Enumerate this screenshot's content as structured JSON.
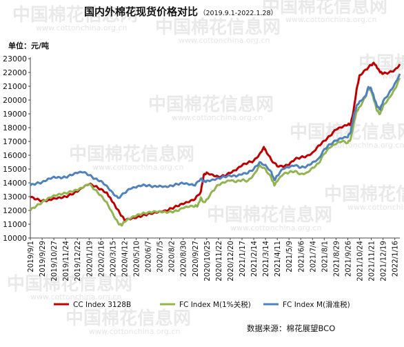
{
  "watermark": {
    "brand": "中国棉花信息网",
    "url": "www.cottonchina.org.cn"
  },
  "chart_data": {
    "type": "line",
    "title": "国内外棉花现货价格对比",
    "subtitle": "（2019.9.1-2022.1.28）",
    "unit_label": "单位：元/吨",
    "source": "数据来源：棉花展望BCO",
    "ylim": [
      10000,
      23000
    ],
    "yticks": [
      10000,
      11000,
      12000,
      13000,
      14000,
      15000,
      16000,
      17000,
      18000,
      19000,
      20000,
      21000,
      22000,
      23000
    ],
    "x_start": "2019/9/1",
    "x_end": "2022/1/28",
    "x_ticks": [
      "2019/9/1",
      "2019/9/29",
      "2019/10/27",
      "2019/11/24",
      "2019/12/22",
      "2020/1/19",
      "2020/2/16",
      "2020/3/15",
      "2020/4/12",
      "2020/5/10",
      "2020/6/7",
      "2020/7/5",
      "2020/8/2",
      "2020/8/30",
      "2020/9/27",
      "2020/10/25",
      "2020/11/22",
      "2020/12/20",
      "2021/1/17",
      "2021/2/14",
      "2021/3/14",
      "2021/4/11",
      "2021/5/9",
      "2021/6/6",
      "2021/7/4",
      "2021/8/1",
      "2021/8/29",
      "2021/9/26",
      "2021/10/24",
      "2021/11/21",
      "2021/12/19",
      "2022/1/16"
    ],
    "grid": false,
    "legend_position": "bottom",
    "series": [
      {
        "name": "CC Index 3128B",
        "color": "#c00000",
        "points": [
          [
            "2019/9/1",
            12950
          ],
          [
            "2019/9/15",
            12800
          ],
          [
            "2019/9/29",
            12700
          ],
          [
            "2019/10/13",
            12750
          ],
          [
            "2019/10/27",
            12900
          ],
          [
            "2019/11/10",
            12950
          ],
          [
            "2019/11/24",
            13000
          ],
          [
            "2019/12/8",
            13150
          ],
          [
            "2019/12/22",
            13350
          ],
          [
            "2020/1/5",
            13650
          ],
          [
            "2020/1/19",
            13900
          ],
          [
            "2020/2/2",
            13750
          ],
          [
            "2020/2/16",
            13550
          ],
          [
            "2020/3/1",
            13300
          ],
          [
            "2020/3/10",
            12900
          ],
          [
            "2020/3/20",
            12400
          ],
          [
            "2020/4/1",
            11800
          ],
          [
            "2020/4/12",
            11300
          ],
          [
            "2020/4/26",
            11350
          ],
          [
            "2020/5/10",
            11450
          ],
          [
            "2020/5/24",
            11600
          ],
          [
            "2020/6/7",
            11750
          ],
          [
            "2020/6/21",
            11850
          ],
          [
            "2020/7/5",
            11950
          ],
          [
            "2020/7/19",
            12000
          ],
          [
            "2020/8/2",
            12150
          ],
          [
            "2020/8/16",
            12300
          ],
          [
            "2020/8/30",
            12450
          ],
          [
            "2020/9/13",
            12600
          ],
          [
            "2020/9/27",
            12800
          ],
          [
            "2020/10/11",
            13350
          ],
          [
            "2020/10/18",
            14600
          ],
          [
            "2020/10/25",
            14750
          ],
          [
            "2020/11/8",
            14600
          ],
          [
            "2020/11/22",
            14450
          ],
          [
            "2020/12/6",
            14500
          ],
          [
            "2020/12/20",
            14700
          ],
          [
            "2021/1/3",
            14900
          ],
          [
            "2021/1/17",
            15250
          ],
          [
            "2021/1/31",
            15450
          ],
          [
            "2021/2/14",
            15600
          ],
          [
            "2021/2/28",
            16100
          ],
          [
            "2021/3/10",
            16600
          ],
          [
            "2021/3/14",
            16400
          ],
          [
            "2021/3/28",
            15650
          ],
          [
            "2021/4/11",
            15200
          ],
          [
            "2021/4/25",
            15150
          ],
          [
            "2021/5/9",
            15300
          ],
          [
            "2021/5/23",
            15700
          ],
          [
            "2021/6/6",
            15850
          ],
          [
            "2021/6/20",
            15950
          ],
          [
            "2021/7/4",
            16200
          ],
          [
            "2021/7/18",
            16700
          ],
          [
            "2021/8/1",
            17050
          ],
          [
            "2021/8/15",
            17400
          ],
          [
            "2021/8/29",
            17850
          ],
          [
            "2021/9/12",
            18000
          ],
          [
            "2021/9/26",
            18200
          ],
          [
            "2021/10/3",
            18250
          ],
          [
            "2021/10/10",
            19300
          ],
          [
            "2021/10/17",
            20800
          ],
          [
            "2021/10/24",
            21800
          ],
          [
            "2021/11/7",
            22200
          ],
          [
            "2021/11/21",
            22550
          ],
          [
            "2021/11/28",
            22650
          ],
          [
            "2021/12/5",
            22300
          ],
          [
            "2021/12/12",
            22000
          ],
          [
            "2021/12/19",
            21900
          ],
          [
            "2022/1/2",
            22000
          ],
          [
            "2022/1/16",
            22200
          ],
          [
            "2022/1/28",
            22600
          ]
        ]
      },
      {
        "name": "FC Index M(1%关税)",
        "color": "#92b44f",
        "points": [
          [
            "2019/9/1",
            12000
          ],
          [
            "2019/9/15",
            12300
          ],
          [
            "2019/9/29",
            12600
          ],
          [
            "2019/10/13",
            12900
          ],
          [
            "2019/10/27",
            13100
          ],
          [
            "2019/11/10",
            13200
          ],
          [
            "2019/11/24",
            13250
          ],
          [
            "2019/12/8",
            13350
          ],
          [
            "2019/12/22",
            13450
          ],
          [
            "2020/1/5",
            13650
          ],
          [
            "2020/1/19",
            13900
          ],
          [
            "2020/2/2",
            13500
          ],
          [
            "2020/2/16",
            13100
          ],
          [
            "2020/3/1",
            12600
          ],
          [
            "2020/3/15",
            11800
          ],
          [
            "2020/3/28",
            11100
          ],
          [
            "2020/4/5",
            10900
          ],
          [
            "2020/4/12",
            11150
          ],
          [
            "2020/4/26",
            11400
          ],
          [
            "2020/5/10",
            11600
          ],
          [
            "2020/5/24",
            11750
          ],
          [
            "2020/6/7",
            11850
          ],
          [
            "2020/6/21",
            11950
          ],
          [
            "2020/7/5",
            11950
          ],
          [
            "2020/7/19",
            11900
          ],
          [
            "2020/8/2",
            11900
          ],
          [
            "2020/8/16",
            11950
          ],
          [
            "2020/8/30",
            12150
          ],
          [
            "2020/9/13",
            12250
          ],
          [
            "2020/9/27",
            12300
          ],
          [
            "2020/10/4",
            12350
          ],
          [
            "2020/10/11",
            12950
          ],
          [
            "2020/10/18",
            12600
          ],
          [
            "2020/10/25",
            12800
          ],
          [
            "2020/11/8",
            13400
          ],
          [
            "2020/11/22",
            13850
          ],
          [
            "2020/12/6",
            14000
          ],
          [
            "2020/12/20",
            14150
          ],
          [
            "2021/1/3",
            14050
          ],
          [
            "2021/1/17",
            14200
          ],
          [
            "2021/1/31",
            14150
          ],
          [
            "2021/2/14",
            14600
          ],
          [
            "2021/2/28",
            15300
          ],
          [
            "2021/3/14",
            15000
          ],
          [
            "2021/3/28",
            14350
          ],
          [
            "2021/4/4",
            13800
          ],
          [
            "2021/4/11",
            14100
          ],
          [
            "2021/4/25",
            14600
          ],
          [
            "2021/5/9",
            14750
          ],
          [
            "2021/5/23",
            14850
          ],
          [
            "2021/6/6",
            14650
          ],
          [
            "2021/6/20",
            14750
          ],
          [
            "2021/7/4",
            15100
          ],
          [
            "2021/7/18",
            15400
          ],
          [
            "2021/8/1",
            16100
          ],
          [
            "2021/8/15",
            16550
          ],
          [
            "2021/8/29",
            16800
          ],
          [
            "2021/9/12",
            17000
          ],
          [
            "2021/9/26",
            16900
          ],
          [
            "2021/10/3",
            17200
          ],
          [
            "2021/10/10",
            18300
          ],
          [
            "2021/10/17",
            19200
          ],
          [
            "2021/10/24",
            19500
          ],
          [
            "2021/11/7",
            20200
          ],
          [
            "2021/11/14",
            20800
          ],
          [
            "2021/11/21",
            20600
          ],
          [
            "2021/11/28",
            19900
          ],
          [
            "2021/12/5",
            19200
          ],
          [
            "2021/12/12",
            19000
          ],
          [
            "2021/12/19",
            19600
          ],
          [
            "2022/1/2",
            20150
          ],
          [
            "2022/1/16",
            20800
          ],
          [
            "2022/1/28",
            21600
          ]
        ]
      },
      {
        "name": "FC Index M(滑准税)",
        "color": "#4f81bd",
        "points": [
          [
            "2019/9/1",
            13800
          ],
          [
            "2019/9/15",
            13950
          ],
          [
            "2019/9/29",
            14050
          ],
          [
            "2019/10/13",
            14300
          ],
          [
            "2019/10/27",
            14450
          ],
          [
            "2019/11/10",
            14400
          ],
          [
            "2019/11/24",
            14400
          ],
          [
            "2019/12/8",
            14550
          ],
          [
            "2019/12/22",
            14700
          ],
          [
            "2020/1/5",
            14750
          ],
          [
            "2020/1/19",
            14550
          ],
          [
            "2020/2/2",
            14300
          ],
          [
            "2020/2/16",
            14150
          ],
          [
            "2020/3/1",
            13800
          ],
          [
            "2020/3/15",
            13300
          ],
          [
            "2020/3/28",
            12900
          ],
          [
            "2020/4/12",
            13250
          ],
          [
            "2020/4/26",
            13550
          ],
          [
            "2020/5/10",
            13650
          ],
          [
            "2020/5/24",
            13800
          ],
          [
            "2020/6/7",
            13800
          ],
          [
            "2020/6/21",
            13750
          ],
          [
            "2020/7/5",
            13800
          ],
          [
            "2020/7/19",
            13750
          ],
          [
            "2020/8/2",
            13800
          ],
          [
            "2020/8/16",
            13900
          ],
          [
            "2020/8/30",
            13950
          ],
          [
            "2020/9/13",
            13850
          ],
          [
            "2020/9/27",
            13800
          ],
          [
            "2020/10/11",
            14300
          ],
          [
            "2020/10/18",
            14100
          ],
          [
            "2020/10/25",
            14150
          ],
          [
            "2020/11/8",
            14250
          ],
          [
            "2020/11/22",
            14350
          ],
          [
            "2020/12/6",
            14450
          ],
          [
            "2020/12/20",
            14500
          ],
          [
            "2021/1/3",
            14450
          ],
          [
            "2021/1/17",
            14600
          ],
          [
            "2021/1/31",
            14700
          ],
          [
            "2021/2/14",
            15000
          ],
          [
            "2021/2/28",
            15500
          ],
          [
            "2021/3/14",
            15300
          ],
          [
            "2021/3/28",
            14800
          ],
          [
            "2021/4/4",
            14200
          ],
          [
            "2021/4/11",
            14500
          ],
          [
            "2021/4/25",
            15000
          ],
          [
            "2021/5/9",
            15100
          ],
          [
            "2021/5/23",
            15250
          ],
          [
            "2021/6/6",
            15100
          ],
          [
            "2021/6/20",
            15200
          ],
          [
            "2021/7/4",
            15500
          ],
          [
            "2021/7/18",
            15750
          ],
          [
            "2021/8/1",
            16450
          ],
          [
            "2021/8/15",
            16800
          ],
          [
            "2021/8/29",
            17050
          ],
          [
            "2021/9/12",
            17200
          ],
          [
            "2021/9/26",
            17300
          ],
          [
            "2021/10/3",
            17700
          ],
          [
            "2021/10/10",
            18800
          ],
          [
            "2021/10/17",
            19600
          ],
          [
            "2021/10/24",
            19900
          ],
          [
            "2021/11/7",
            20300
          ],
          [
            "2021/11/14",
            20950
          ],
          [
            "2021/11/21",
            20800
          ],
          [
            "2021/11/28",
            20100
          ],
          [
            "2021/12/5",
            19500
          ],
          [
            "2021/12/12",
            19300
          ],
          [
            "2021/12/19",
            19900
          ],
          [
            "2022/1/2",
            20500
          ],
          [
            "2022/1/16",
            21200
          ],
          [
            "2022/1/28",
            21900
          ]
        ]
      }
    ]
  }
}
